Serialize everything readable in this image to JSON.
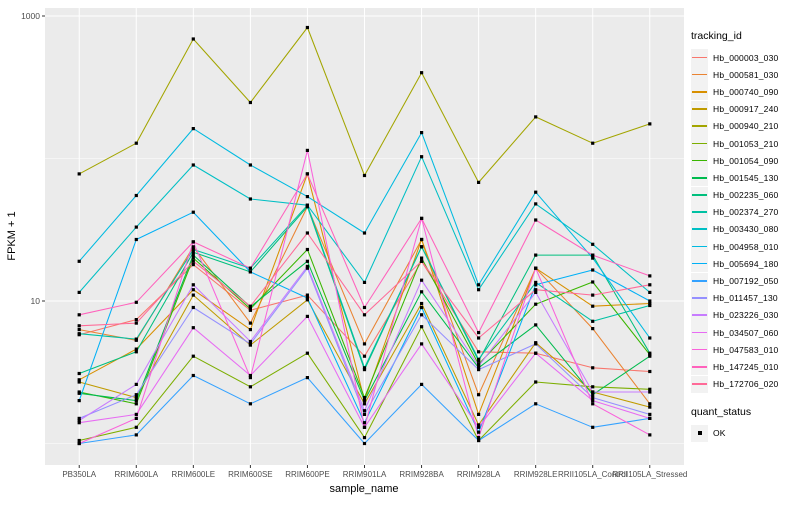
{
  "colors": {
    "background": "#FFFFFF",
    "panel_bg": "#EBEBEB",
    "grid": "#FFFFFF",
    "tick": "#333333",
    "axis_text": "#4D4D4D",
    "title_text": "#000000",
    "point": "#000000",
    "legend_key_bg": "#F2F2F2"
  },
  "chart_data": {
    "type": "line",
    "title": "",
    "xlabel": "sample_name",
    "ylabel": "FPKM + 1",
    "y_scale": "log10",
    "ylim": [
      0.7,
      1150
    ],
    "grid": true,
    "legend_position": "right",
    "y_ticks": [
      {
        "label": "1000",
        "value": 1000
      },
      {
        "label": "10",
        "value": 10
      }
    ],
    "y_minor_gridlines": [
      100,
      1
    ],
    "categories": [
      "PB350LA",
      "RRIM600LA",
      "RRIM600LE",
      "RRIM600SE",
      "RRIM600PE",
      "RRIM901LA",
      "RRIM928BA",
      "RRIM928LA",
      "RRIM928LE",
      "RRII105LA_Control",
      "RRII105LA_Stressed"
    ],
    "point_marker": {
      "shape": "square",
      "color": "#000000",
      "size": 3.2,
      "legend_label": "OK"
    },
    "legend": {
      "title": "tracking_id"
    },
    "legend2": {
      "title": "quant_status",
      "items": [
        {
          "label": "OK",
          "marker": "black-square"
        }
      ]
    },
    "series": [
      {
        "name": "Hb_000003_030",
        "color": "#F8766D",
        "values": [
          5.8,
          7.4,
          18,
          8.6,
          11,
          4.1,
          19,
          4.4,
          4.3,
          3.4,
          3.2
        ]
      },
      {
        "name": "Hb_000581_030",
        "color": "#EA8331",
        "values": [
          6.3,
          5.3,
          24,
          7.0,
          46,
          5.0,
          27,
          2.2,
          17,
          6.4,
          1.9
        ]
      },
      {
        "name": "Hb_000740_090",
        "color": "#D89000",
        "values": [
          2.8,
          4.6,
          12,
          6.3,
          78,
          2.0,
          27,
          1.6,
          17,
          9.2,
          9.6
        ]
      },
      {
        "name": "Hb_000917_240",
        "color": "#C09B00",
        "values": [
          2.7,
          2.1,
          11,
          4.9,
          10.2,
          1.9,
          9.6,
          1.35,
          5.1,
          2.3,
          1.8
        ]
      },
      {
        "name": "Hb_000940_210",
        "color": "#A3A500",
        "values": [
          78,
          128,
          690,
          247,
          830,
          76,
          400,
          68,
          196,
          128,
          175
        ]
      },
      {
        "name": "Hb_001053_210",
        "color": "#7CAE00",
        "values": [
          1.05,
          1.3,
          4.1,
          2.5,
          4.3,
          1.1,
          6.6,
          1.05,
          2.7,
          2.5,
          2.4
        ]
      },
      {
        "name": "Hb_001054_090",
        "color": "#39B600",
        "values": [
          2.3,
          1.9,
          20,
          8.8,
          23,
          2.1,
          20,
          3.6,
          9.5,
          13.6,
          4.2
        ]
      },
      {
        "name": "Hb_001545_130",
        "color": "#00BB4E",
        "values": [
          2.25,
          2.0,
          21,
          9.1,
          19,
          2.0,
          11.6,
          3.4,
          6.8,
          2.2,
          4.1
        ]
      },
      {
        "name": "Hb_002235_060",
        "color": "#00BF7D",
        "values": [
          3.1,
          4.4,
          22,
          16,
          46,
          3.3,
          24,
          3.8,
          21,
          21,
          4.3
        ]
      },
      {
        "name": "Hb_002374_270",
        "color": "#00C1A3",
        "values": [
          5.9,
          5.4,
          23,
          17,
          47,
          3.4,
          24,
          3.9,
          13.5,
          7.2,
          9.3
        ]
      },
      {
        "name": "Hb_003430_080",
        "color": "#00BFC4",
        "values": [
          11.5,
          33,
          90,
          52,
          47,
          13.5,
          103,
          12,
          48,
          25,
          11.5
        ]
      },
      {
        "name": "Hb_004958_010",
        "color": "#00BAE0",
        "values": [
          19,
          55,
          162,
          90,
          54,
          30,
          152,
          13,
          58,
          20,
          5.5
        ]
      },
      {
        "name": "Hb_005694_180",
        "color": "#00B0F6",
        "values": [
          2.0,
          27,
          42,
          16,
          10.5,
          1.4,
          9.0,
          1.2,
          13,
          16.5,
          10
        ]
      },
      {
        "name": "Hb_007192_050",
        "color": "#35A2FF",
        "values": [
          1.0,
          1.15,
          3.0,
          1.9,
          2.9,
          1.0,
          2.6,
          1.05,
          1.9,
          1.3,
          1.5
        ]
      },
      {
        "name": "Hb_011457_130",
        "color": "#9590FF",
        "values": [
          1.5,
          2.2,
          9.0,
          5.0,
          17,
          1.6,
          8.0,
          3.3,
          5.0,
          2.1,
          1.6
        ]
      },
      {
        "name": "Hb_023226_030",
        "color": "#C77CFF",
        "values": [
          1.45,
          2.6,
          13,
          5.2,
          17.5,
          1.7,
          14,
          3.5,
          11.5,
          2.3,
          2.3
        ]
      },
      {
        "name": "Hb_034507_060",
        "color": "#E76BF3",
        "values": [
          1.4,
          1.6,
          6.5,
          3.0,
          7.8,
          1.3,
          5.0,
          1.3,
          4.3,
          2.0,
          1.5
        ]
      },
      {
        "name": "Hb_047583_010",
        "color": "#FA62DB",
        "values": [
          1.0,
          1.5,
          26,
          2.9,
          114,
          1.3,
          38,
          1.1,
          17,
          1.9,
          1.15
        ]
      },
      {
        "name": "Hb_147245_010",
        "color": "#FF62BC",
        "values": [
          8.0,
          9.8,
          26,
          17,
          78,
          9.0,
          38,
          6.0,
          37,
          21,
          15
        ]
      },
      {
        "name": "Hb_172706_020",
        "color": "#FF6A98",
        "values": [
          6.7,
          7.0,
          19,
          9.2,
          30,
          8.0,
          19,
          5.5,
          12,
          11,
          13
        ]
      }
    ]
  }
}
